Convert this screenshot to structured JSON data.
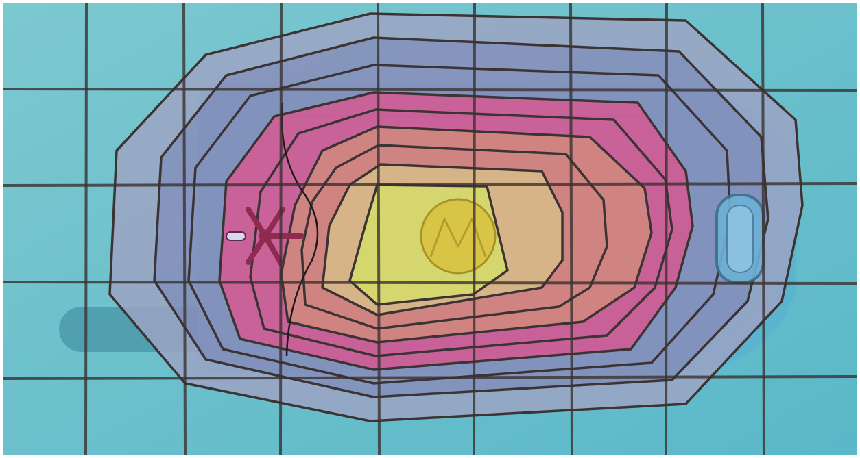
{
  "image": {
    "subject": "flip-phone-back",
    "logo": "M"
  },
  "colors": {
    "background": "#5ab8c8",
    "background_light": "#7cc8d0",
    "phone_shell": "#5ab4d0",
    "antenna": "#4b9aaa",
    "zone_outer": "#9ea4c4",
    "zone_mid": "#8a8cba",
    "zone_pink": "#e0508c",
    "zone_salmon": "#ea7a70",
    "zone_orange": "#f2b478",
    "zone_core": "#f2de5a",
    "logo_circle": "#d8c240",
    "grid_line": "#3a3230",
    "contour_line": "#3c3434",
    "speaker_mark": "#902a50"
  },
  "icons": [
    "speaker-icon",
    "motorola-logo-icon",
    "side-button-icon",
    "antenna-icon"
  ]
}
